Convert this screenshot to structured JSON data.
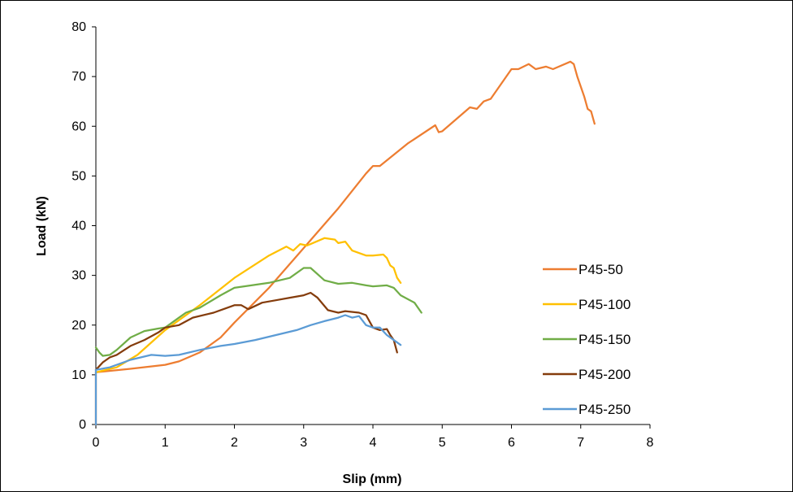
{
  "chart_data": {
    "type": "line",
    "title": "",
    "xlabel": "Slip (mm)",
    "ylabel": "Load (kN)",
    "xlim": [
      0,
      8
    ],
    "ylim": [
      0,
      80
    ],
    "xticks": [
      0,
      1,
      2,
      3,
      4,
      5,
      6,
      7,
      8
    ],
    "yticks": [
      0,
      10,
      20,
      30,
      40,
      50,
      60,
      70,
      80
    ],
    "grid": false,
    "legend_position": "right",
    "series": [
      {
        "name": "P45-50",
        "color": "#ED7D31",
        "points": [
          [
            0,
            0
          ],
          [
            0,
            10.5
          ],
          [
            0.5,
            11.2
          ],
          [
            1.0,
            12.0
          ],
          [
            1.2,
            12.7
          ],
          [
            1.5,
            14.5
          ],
          [
            1.8,
            17.5
          ],
          [
            2.0,
            20.5
          ],
          [
            2.5,
            27.5
          ],
          [
            3.0,
            35.5
          ],
          [
            3.5,
            43.5
          ],
          [
            3.9,
            50.5
          ],
          [
            4.0,
            52.0
          ],
          [
            4.1,
            52.0
          ],
          [
            4.5,
            56.5
          ],
          [
            4.9,
            60.2
          ],
          [
            4.95,
            58.8
          ],
          [
            5.0,
            59.0
          ],
          [
            5.4,
            63.8
          ],
          [
            5.5,
            63.5
          ],
          [
            5.6,
            65.0
          ],
          [
            5.7,
            65.5
          ],
          [
            6.0,
            71.5
          ],
          [
            6.1,
            71.5
          ],
          [
            6.25,
            72.5
          ],
          [
            6.35,
            71.5
          ],
          [
            6.5,
            72.0
          ],
          [
            6.6,
            71.5
          ],
          [
            6.85,
            73.0
          ],
          [
            6.9,
            72.5
          ],
          [
            6.95,
            70.0
          ],
          [
            7.05,
            66.0
          ],
          [
            7.1,
            63.5
          ],
          [
            7.15,
            63.0
          ],
          [
            7.2,
            60.5
          ]
        ]
      },
      {
        "name": "P45-100",
        "color": "#FFC000",
        "points": [
          [
            0,
            10.5
          ],
          [
            0.3,
            11.5
          ],
          [
            0.6,
            14.0
          ],
          [
            1.0,
            19.0
          ],
          [
            1.5,
            24.0
          ],
          [
            2.0,
            29.5
          ],
          [
            2.5,
            34.0
          ],
          [
            2.75,
            35.8
          ],
          [
            2.85,
            35.0
          ],
          [
            2.95,
            36.3
          ],
          [
            3.05,
            36.0
          ],
          [
            3.3,
            37.5
          ],
          [
            3.45,
            37.2
          ],
          [
            3.5,
            36.5
          ],
          [
            3.6,
            36.8
          ],
          [
            3.7,
            35.0
          ],
          [
            3.9,
            34.0
          ],
          [
            4.0,
            34.0
          ],
          [
            4.15,
            34.2
          ],
          [
            4.2,
            33.5
          ],
          [
            4.25,
            32.0
          ],
          [
            4.3,
            31.5
          ],
          [
            4.35,
            29.5
          ],
          [
            4.4,
            28.5
          ]
        ]
      },
      {
        "name": "P45-150",
        "color": "#70AD47",
        "points": [
          [
            0,
            15.5
          ],
          [
            0.05,
            14.5
          ],
          [
            0.1,
            13.8
          ],
          [
            0.2,
            14.0
          ],
          [
            0.3,
            15.0
          ],
          [
            0.5,
            17.5
          ],
          [
            0.7,
            18.8
          ],
          [
            0.9,
            19.3
          ],
          [
            1.0,
            19.5
          ],
          [
            1.1,
            20.5
          ],
          [
            1.2,
            21.5
          ],
          [
            1.3,
            22.5
          ],
          [
            1.5,
            23.5
          ],
          [
            1.8,
            26.0
          ],
          [
            2.0,
            27.5
          ],
          [
            2.5,
            28.5
          ],
          [
            2.8,
            29.5
          ],
          [
            3.0,
            31.5
          ],
          [
            3.1,
            31.5
          ],
          [
            3.3,
            29.0
          ],
          [
            3.5,
            28.3
          ],
          [
            3.7,
            28.5
          ],
          [
            3.9,
            28.0
          ],
          [
            4.0,
            27.8
          ],
          [
            4.2,
            28.0
          ],
          [
            4.3,
            27.5
          ],
          [
            4.4,
            26.0
          ],
          [
            4.6,
            24.5
          ],
          [
            4.7,
            22.5
          ]
        ]
      },
      {
        "name": "P45-200",
        "color": "#843C0C",
        "points": [
          [
            0,
            11.0
          ],
          [
            0.1,
            12.5
          ],
          [
            0.2,
            13.5
          ],
          [
            0.3,
            14.0
          ],
          [
            0.5,
            15.8
          ],
          [
            0.7,
            17.0
          ],
          [
            0.9,
            18.5
          ],
          [
            1.0,
            19.5
          ],
          [
            1.2,
            20.0
          ],
          [
            1.4,
            21.5
          ],
          [
            1.7,
            22.5
          ],
          [
            2.0,
            24.0
          ],
          [
            2.1,
            24.0
          ],
          [
            2.2,
            23.2
          ],
          [
            2.4,
            24.5
          ],
          [
            2.6,
            25.0
          ],
          [
            2.8,
            25.5
          ],
          [
            3.0,
            26.0
          ],
          [
            3.1,
            26.5
          ],
          [
            3.2,
            25.5
          ],
          [
            3.35,
            23.0
          ],
          [
            3.5,
            22.5
          ],
          [
            3.6,
            22.8
          ],
          [
            3.8,
            22.5
          ],
          [
            3.9,
            22.0
          ],
          [
            4.0,
            19.5
          ],
          [
            4.1,
            19.0
          ],
          [
            4.2,
            19.2
          ],
          [
            4.25,
            18.0
          ],
          [
            4.3,
            17.0
          ],
          [
            4.35,
            14.5
          ]
        ]
      },
      {
        "name": "P45-250",
        "color": "#5B9BD5",
        "points": [
          [
            0,
            0
          ],
          [
            0,
            11.0
          ],
          [
            0.2,
            11.5
          ],
          [
            0.5,
            13.0
          ],
          [
            0.8,
            14.0
          ],
          [
            1.0,
            13.8
          ],
          [
            1.2,
            14.0
          ],
          [
            1.5,
            15.0
          ],
          [
            1.8,
            15.8
          ],
          [
            2.0,
            16.2
          ],
          [
            2.3,
            17.0
          ],
          [
            2.6,
            18.0
          ],
          [
            2.9,
            19.0
          ],
          [
            3.1,
            20.0
          ],
          [
            3.3,
            20.8
          ],
          [
            3.5,
            21.5
          ],
          [
            3.6,
            22.0
          ],
          [
            3.7,
            21.5
          ],
          [
            3.8,
            21.8
          ],
          [
            3.9,
            20.0
          ],
          [
            4.0,
            19.5
          ],
          [
            4.1,
            19.5
          ],
          [
            4.2,
            18.0
          ],
          [
            4.3,
            17.0
          ],
          [
            4.4,
            16.0
          ]
        ]
      }
    ]
  }
}
